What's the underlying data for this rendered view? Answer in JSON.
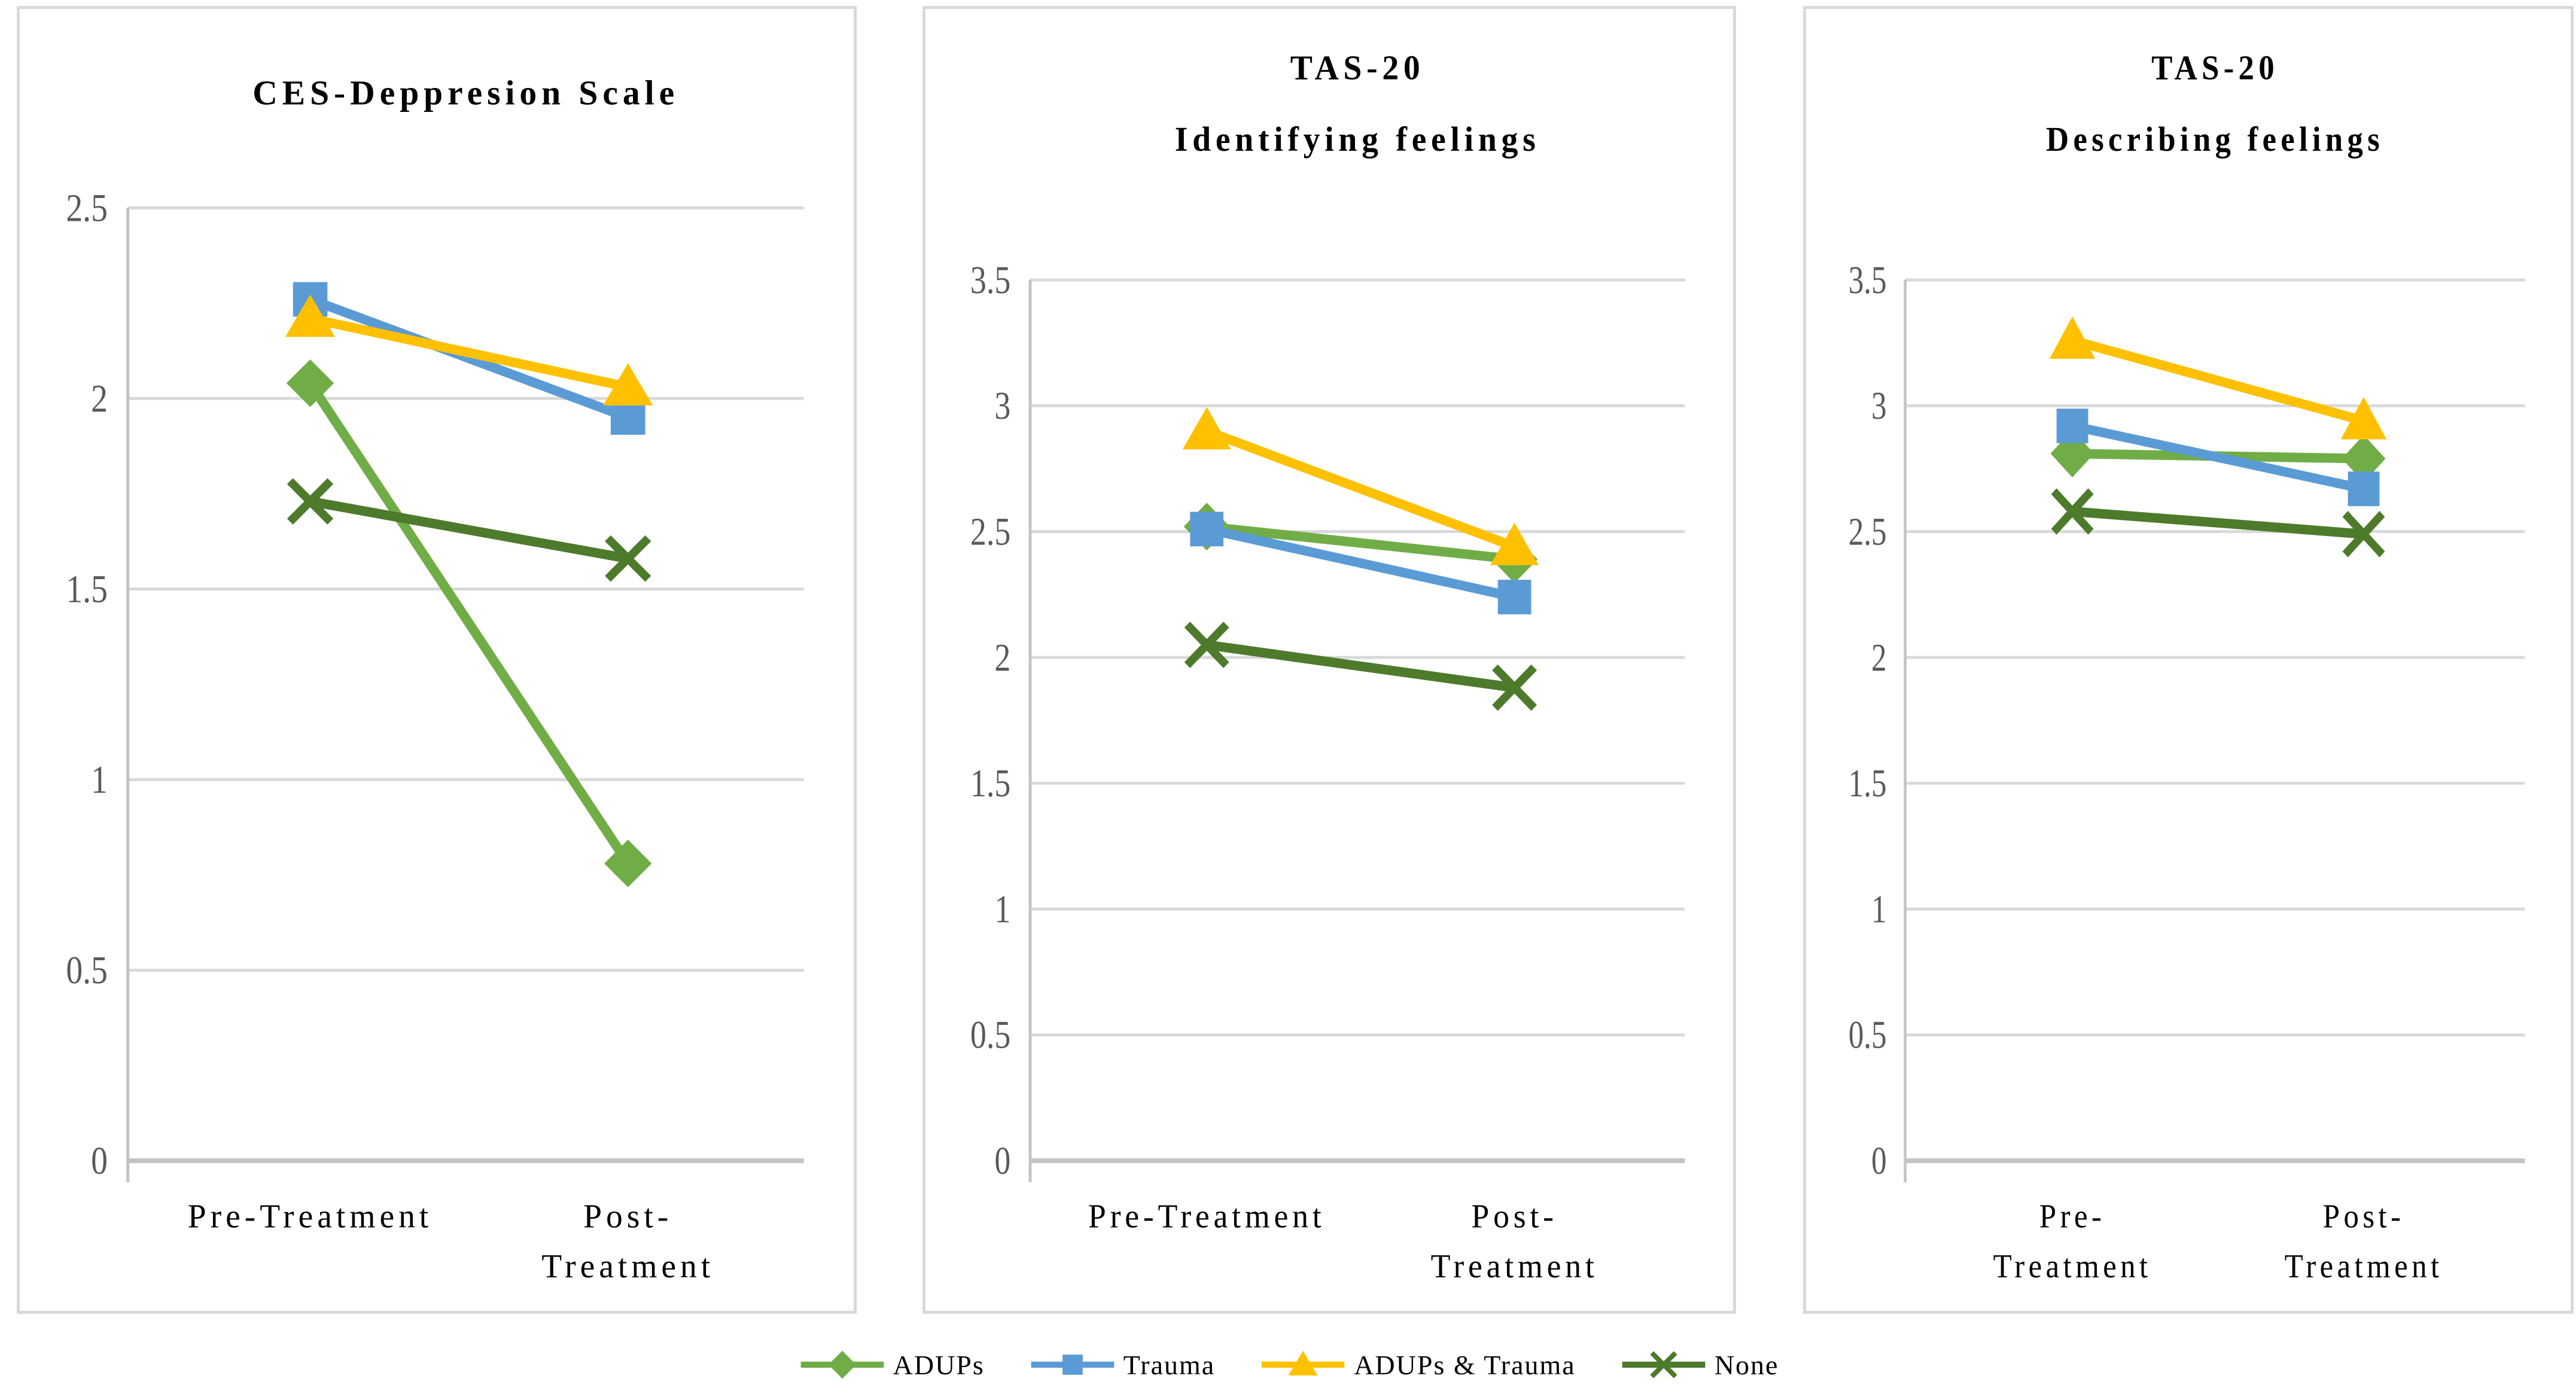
{
  "style_colors": {
    "gridline": "#D9D9D9",
    "axis_line": "#C3C3C3",
    "panel_border": "#D9D9D9",
    "tick_label": "#595959",
    "text": "#000000"
  },
  "legend": {
    "items": [
      {
        "label": "ADUPs",
        "color": "#70AD47",
        "marker": "diamond"
      },
      {
        "label": "Trauma",
        "color": "#5B9BD5",
        "marker": "square"
      },
      {
        "label": "ADUPs & Trauma",
        "color": "#FFC000",
        "marker": "triangle"
      },
      {
        "label": "None",
        "color": "#4E7A2B",
        "marker": "x"
      }
    ]
  },
  "chart_data": [
    {
      "type": "line",
      "id": "ces-depression-scale",
      "title": "CES-Deppresion Scale",
      "title_lines": [
        "CES-Deppresion Scale"
      ],
      "categories": [
        "Pre-Treatment",
        "Post-Treatment"
      ],
      "x_label_lines": [
        [
          "Pre-Treatment"
        ],
        [
          "Post-",
          "Treatment"
        ]
      ],
      "ylim": [
        0,
        2.5
      ],
      "ytick_step": 0.5,
      "grid": true,
      "legend_position": "bottom-shared",
      "series": [
        {
          "name": "ADUPs",
          "color": "#70AD47",
          "marker": "diamond",
          "values": [
            2.04,
            0.78
          ]
        },
        {
          "name": "Trauma",
          "color": "#5B9BD5",
          "marker": "square",
          "values": [
            2.26,
            1.95
          ]
        },
        {
          "name": "ADUPs & Trauma",
          "color": "#FFC000",
          "marker": "triangle",
          "values": [
            2.21,
            2.03
          ]
        },
        {
          "name": "None",
          "color": "#4E7A2B",
          "marker": "x",
          "values": [
            1.73,
            1.58
          ]
        }
      ]
    },
    {
      "type": "line",
      "id": "tas20-identifying-feelings",
      "title": "TAS-20 Identifying feelings",
      "title_lines": [
        "TAS-20",
        "Identifying feelings"
      ],
      "categories": [
        "Pre-Treatment",
        "Post-Treatment"
      ],
      "x_label_lines": [
        [
          "Pre-Treatment"
        ],
        [
          "Post-",
          "Treatment"
        ]
      ],
      "ylim": [
        0,
        3.5
      ],
      "ytick_step": 0.5,
      "grid": true,
      "legend_position": "bottom-shared",
      "series": [
        {
          "name": "ADUPs",
          "color": "#70AD47",
          "marker": "diamond",
          "values": [
            2.52,
            2.39
          ]
        },
        {
          "name": "Trauma",
          "color": "#5B9BD5",
          "marker": "square",
          "values": [
            2.51,
            2.24
          ]
        },
        {
          "name": "ADUPs & Trauma",
          "color": "#FFC000",
          "marker": "triangle",
          "values": [
            2.9,
            2.44
          ]
        },
        {
          "name": "None",
          "color": "#4E7A2B",
          "marker": "x",
          "values": [
            2.05,
            1.88
          ]
        }
      ]
    },
    {
      "type": "line",
      "id": "tas20-describing-feelings",
      "title": "TAS-20 Describing feelings",
      "title_lines": [
        "TAS-20",
        "Describing feelings"
      ],
      "categories": [
        "Pre-Treatment",
        "Post-Treatment"
      ],
      "x_label_lines": [
        [
          "Pre-",
          "Treatment"
        ],
        [
          "Post-",
          "Treatment"
        ]
      ],
      "ylim": [
        0,
        3.5
      ],
      "ytick_step": 0.5,
      "grid": true,
      "legend_position": "bottom-shared",
      "series": [
        {
          "name": "ADUPs",
          "color": "#70AD47",
          "marker": "diamond",
          "values": [
            2.81,
            2.79
          ]
        },
        {
          "name": "Trauma",
          "color": "#5B9BD5",
          "marker": "square",
          "values": [
            2.92,
            2.67
          ]
        },
        {
          "name": "ADUPs & Trauma",
          "color": "#FFC000",
          "marker": "triangle",
          "values": [
            3.26,
            2.94
          ]
        },
        {
          "name": "None",
          "color": "#4E7A2B",
          "marker": "x",
          "values": [
            2.58,
            2.49
          ]
        }
      ]
    }
  ]
}
